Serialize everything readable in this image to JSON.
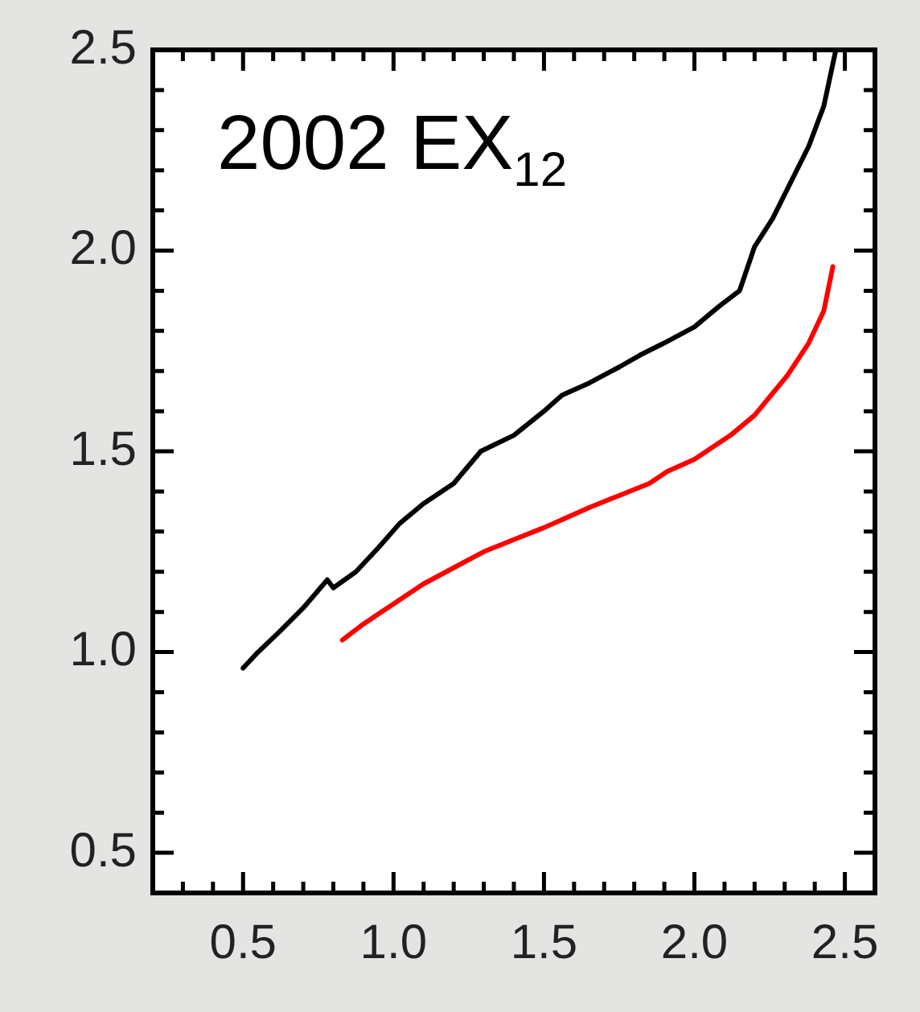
{
  "chart_data": {
    "type": "line",
    "annotations": [
      "2002 EX$_{12}$"
    ],
    "series": [
      {
        "color": "#000000",
        "x": [
          0.5,
          0.55,
          0.62,
          0.7,
          0.78,
          0.8,
          0.875,
          0.95,
          1.02,
          1.1,
          1.2,
          1.29,
          1.4,
          1.5,
          1.56,
          1.65,
          1.75,
          1.82,
          1.9,
          2.0,
          2.08,
          2.15,
          2.2,
          2.26,
          2.32,
          2.38,
          2.43,
          2.47
        ],
        "values": [
          0.96,
          1.0,
          1.05,
          1.11,
          1.18,
          1.16,
          1.2,
          1.26,
          1.32,
          1.37,
          1.42,
          1.5,
          1.54,
          1.6,
          1.64,
          1.67,
          1.71,
          1.74,
          1.77,
          1.81,
          1.86,
          1.9,
          2.01,
          2.08,
          2.17,
          2.26,
          2.36,
          2.5
        ]
      },
      {
        "color": "#ff0000",
        "x": [
          0.83,
          0.9,
          1.0,
          1.1,
          1.2,
          1.3,
          1.4,
          1.5,
          1.56,
          1.65,
          1.75,
          1.85,
          1.91,
          2.0,
          2.12,
          2.2,
          2.31,
          2.38,
          2.43,
          2.46
        ],
        "values": [
          1.03,
          1.07,
          1.12,
          1.17,
          1.21,
          1.25,
          1.28,
          1.31,
          1.33,
          1.36,
          1.39,
          1.42,
          1.45,
          1.48,
          1.54,
          1.59,
          1.69,
          1.77,
          1.85,
          1.96
        ]
      }
    ],
    "xlim": [
      0.2,
      2.6
    ],
    "xticks": [
      {
        "value": 0.3,
        "label": null
      },
      {
        "value": 0.4,
        "label": null
      },
      0.5,
      {
        "value": 0.6,
        "label": null
      },
      {
        "value": 0.7,
        "label": null
      },
      {
        "value": 0.8,
        "label": null
      },
      {
        "value": 0.9,
        "label": null
      },
      {
        "value": 1.0,
        "label": "1.0"
      },
      {
        "value": 1.1,
        "label": null
      },
      {
        "value": 1.2,
        "label": null
      },
      {
        "value": 1.3,
        "label": null
      },
      {
        "value": 1.4,
        "label": null
      },
      1.5,
      {
        "value": 1.6,
        "label": null
      },
      {
        "value": 1.7,
        "label": null
      },
      {
        "value": 1.8,
        "label": null
      },
      {
        "value": 1.9,
        "label": null
      },
      {
        "value": 2.0,
        "label": "2.0"
      },
      {
        "value": 2.1,
        "label": null
      },
      {
        "value": 2.2,
        "label": null
      },
      {
        "value": 2.3,
        "label": null
      },
      {
        "value": 2.4,
        "label": null
      },
      2.5
    ],
    "ylim": [
      0.4,
      2.5
    ],
    "yticks": [
      0.5,
      {
        "value": 0.6,
        "label": null
      },
      {
        "value": 0.7,
        "label": null
      },
      {
        "value": 0.8,
        "label": null
      },
      {
        "value": 0.9,
        "label": null
      },
      {
        "value": 1.0,
        "label": "1.0"
      },
      {
        "value": 1.1,
        "label": null
      },
      {
        "value": 1.2,
        "label": null
      },
      {
        "value": 1.3,
        "label": null
      },
      {
        "value": 1.4,
        "label": null
      },
      1.5,
      {
        "value": 1.6,
        "label": null
      },
      {
        "value": 1.7,
        "label": null
      },
      {
        "value": 1.8,
        "label": null
      },
      {
        "value": 1.9,
        "label": null
      },
      {
        "value": 2.0,
        "label": "2.0"
      },
      {
        "value": 2.1,
        "label": null
      },
      {
        "value": 2.2,
        "label": null
      },
      {
        "value": 2.3,
        "label": null
      },
      {
        "value": 2.4,
        "label": null
      },
      2.5
    ],
    "grid": false,
    "legend": false,
    "marker": "none",
    "line_style": "solid"
  }
}
